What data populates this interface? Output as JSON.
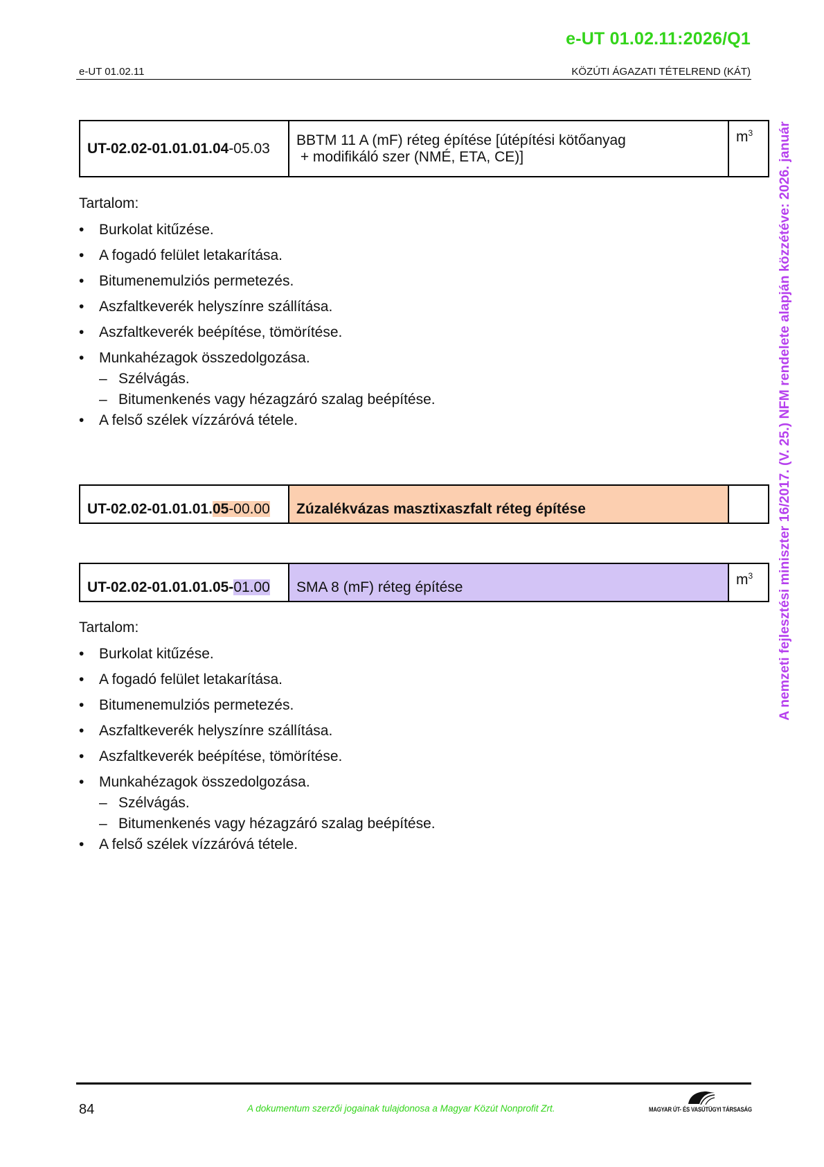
{
  "header": {
    "doc_id": "e-UT 01.02.11:2026/Q1",
    "left": "e-UT 01.02.11",
    "right": "KÖZÚTI ÁGAZATI TÉTELREND (KÁT)"
  },
  "side_note": "A nemzeti fejlesztési miniszter 16/2017. (V. 25.) NFM rendelete alapján közzétéve: 2026. január",
  "items": [
    {
      "code_bold": "UT-02.02-01.01.01.04",
      "code_rest": "-05.03",
      "title_line1": "BBTM 11 A (mF) réteg építése [útépítési kötőanyag",
      "title_line2": " + modifikáló szer (NMÉ, ETA, CE)]",
      "unit": "m",
      "unit_sup": "3",
      "content_label": "Tartalom:",
      "content": [
        {
          "type": "bullet",
          "text": "Burkolat kitűzése."
        },
        {
          "type": "bullet",
          "text": "A fogadó felület letakarítása."
        },
        {
          "type": "bullet",
          "text": "Bitumenemulziós permetezés."
        },
        {
          "type": "bullet",
          "text": "Aszfaltkeverék helyszínre szállítása."
        },
        {
          "type": "bullet",
          "text": "Aszfaltkeverék beépítése, tömörítése."
        },
        {
          "type": "bullet",
          "text": "Munkahézagok összedolgozása."
        },
        {
          "type": "dash",
          "text": "Szélvágás."
        },
        {
          "type": "dash",
          "text": "Bitumenkenés vagy hézagzáró szalag beépítése."
        },
        {
          "type": "bullet",
          "text": "A felső szélek vízzáróvá tétele."
        }
      ]
    },
    {
      "code_bold": "UT-02.02-01.01.01.",
      "code_hl_bold": "05",
      "code_hl_rest": "-00.00",
      "title": "Zúzalékvázas masztixaszfalt réteg építése",
      "highlight_color": "#fccfb0"
    },
    {
      "code_bold": "UT-02.02-01.01.01.05-",
      "code_hl_rest": "01.00",
      "title": "SMA 8 (mF) réteg építése",
      "unit": "m",
      "unit_sup": "3",
      "highlight_color": "#d3c4f6",
      "content_label": "Tartalom:",
      "content": [
        {
          "type": "bullet",
          "text": "Burkolat kitűzése."
        },
        {
          "type": "bullet",
          "text": "A fogadó felület letakarítása."
        },
        {
          "type": "bullet",
          "text": "Bitumenemulziós permetezés."
        },
        {
          "type": "bullet",
          "text": "Aszfaltkeverék helyszínre szállítása."
        },
        {
          "type": "bullet",
          "text": "Aszfaltkeverék beépítése, tömörítése."
        },
        {
          "type": "bullet",
          "text": "Munkahézagok összedolgozása."
        },
        {
          "type": "dash",
          "text": "Szélvágás."
        },
        {
          "type": "dash",
          "text": "Bitumenkenés vagy hézagzáró szalag beépítése."
        },
        {
          "type": "bullet",
          "text": "A felső szélek vízzáróvá tétele."
        }
      ]
    }
  ],
  "footer": {
    "page_number": "84",
    "copyright": "A dokumentum szerzői jogainak tulajdonosa a Magyar Közút Nonprofit Zrt.",
    "logo_text": "MAGYAR ÚT- ÉS VASÚTÜGYI TÁRSASÁG"
  },
  "colors": {
    "doc_id": "#33d41a",
    "side_note": "#b640ee",
    "peach": "#fccfb0",
    "lavender": "#d3c4f6"
  }
}
